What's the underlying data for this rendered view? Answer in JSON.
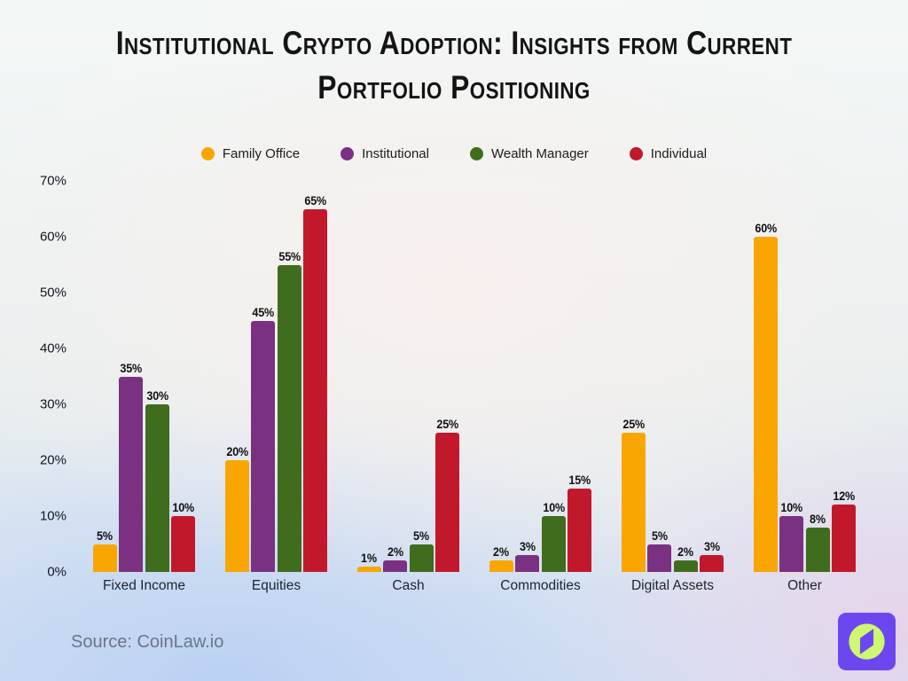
{
  "title": {
    "line1": "Institutional Crypto Adoption: Insights from Current",
    "line2": "Portfolio Positioning"
  },
  "source": "Source: CoinLaw.io",
  "logo": {
    "name": "coinlaw-logo",
    "square_color": "#6C47F0",
    "circle_color": "#CDF86F"
  },
  "chart_data": {
    "type": "bar",
    "title": "Institutional Crypto Adoption: Insights from Current Portfolio Positioning",
    "categories": [
      "Fixed Income",
      "Equities",
      "Cash",
      "Commodities",
      "Digital Assets",
      "Other"
    ],
    "series": [
      {
        "name": "Family Office",
        "color": "#F9A602",
        "values": [
          5,
          20,
          1,
          2,
          25,
          60
        ]
      },
      {
        "name": "Institutional",
        "color": "#7B3182",
        "values": [
          35,
          45,
          2,
          3,
          5,
          10
        ]
      },
      {
        "name": "Wealth Manager",
        "color": "#3F6D1D",
        "values": [
          30,
          55,
          5,
          10,
          2,
          8
        ]
      },
      {
        "name": "Individual",
        "color": "#C2182B",
        "values": [
          10,
          65,
          25,
          15,
          3,
          12
        ]
      }
    ],
    "ylim": [
      0,
      70
    ],
    "yticks": [
      0,
      10,
      20,
      30,
      40,
      50,
      60,
      70
    ],
    "ytick_format": "{v}%",
    "value_label_format": "{v}%",
    "grid": false,
    "legend_position": "top",
    "xlabel": "",
    "ylabel": ""
  }
}
